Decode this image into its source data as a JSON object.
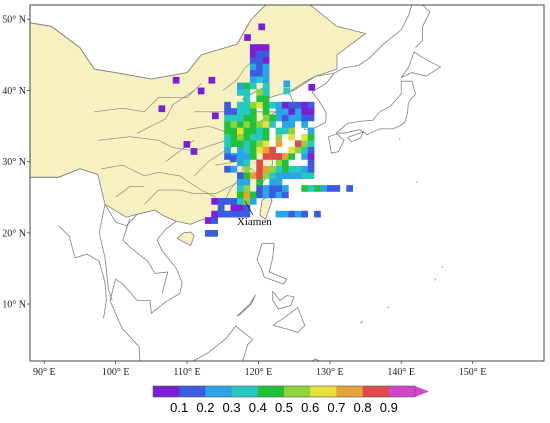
{
  "map": {
    "lon_range": [
      88,
      160
    ],
    "lat_range": [
      2,
      52
    ],
    "lat_ticks": [
      {
        "value": 10,
        "label": "10° N"
      },
      {
        "value": 20,
        "label": "20° N"
      },
      {
        "value": 30,
        "label": "30° N"
      },
      {
        "value": 40,
        "label": "40° N"
      },
      {
        "value": 50,
        "label": "50° N"
      }
    ],
    "lon_ticks": [
      {
        "value": 90,
        "label": "90° E"
      },
      {
        "value": 100,
        "label": "100° E"
      },
      {
        "value": 110,
        "label": "110° E"
      },
      {
        "value": 120,
        "label": "120° E"
      },
      {
        "value": 130,
        "label": "130° E"
      },
      {
        "value": 140,
        "label": "140° E"
      },
      {
        "value": 150,
        "label": "150° E"
      }
    ],
    "station": {
      "name": "Xiamen",
      "lon": 118.1,
      "lat": 24.5
    },
    "colors": {
      "china_fill": "#f7f0c0",
      "border": "#808080",
      "ocean": "#ffffff"
    }
  },
  "colorbar": {
    "ticks": [
      "0.1",
      "0.2",
      "0.3",
      "0.4",
      "0.5",
      "0.6",
      "0.7",
      "0.8",
      "0.9"
    ],
    "colors": [
      "#7b1fd6",
      "#3b5be0",
      "#2aa6e6",
      "#25c9c0",
      "#1fc23a",
      "#8fd43a",
      "#e6e03a",
      "#e8a23a",
      "#e04a4a",
      "#d048c8"
    ]
  }
}
